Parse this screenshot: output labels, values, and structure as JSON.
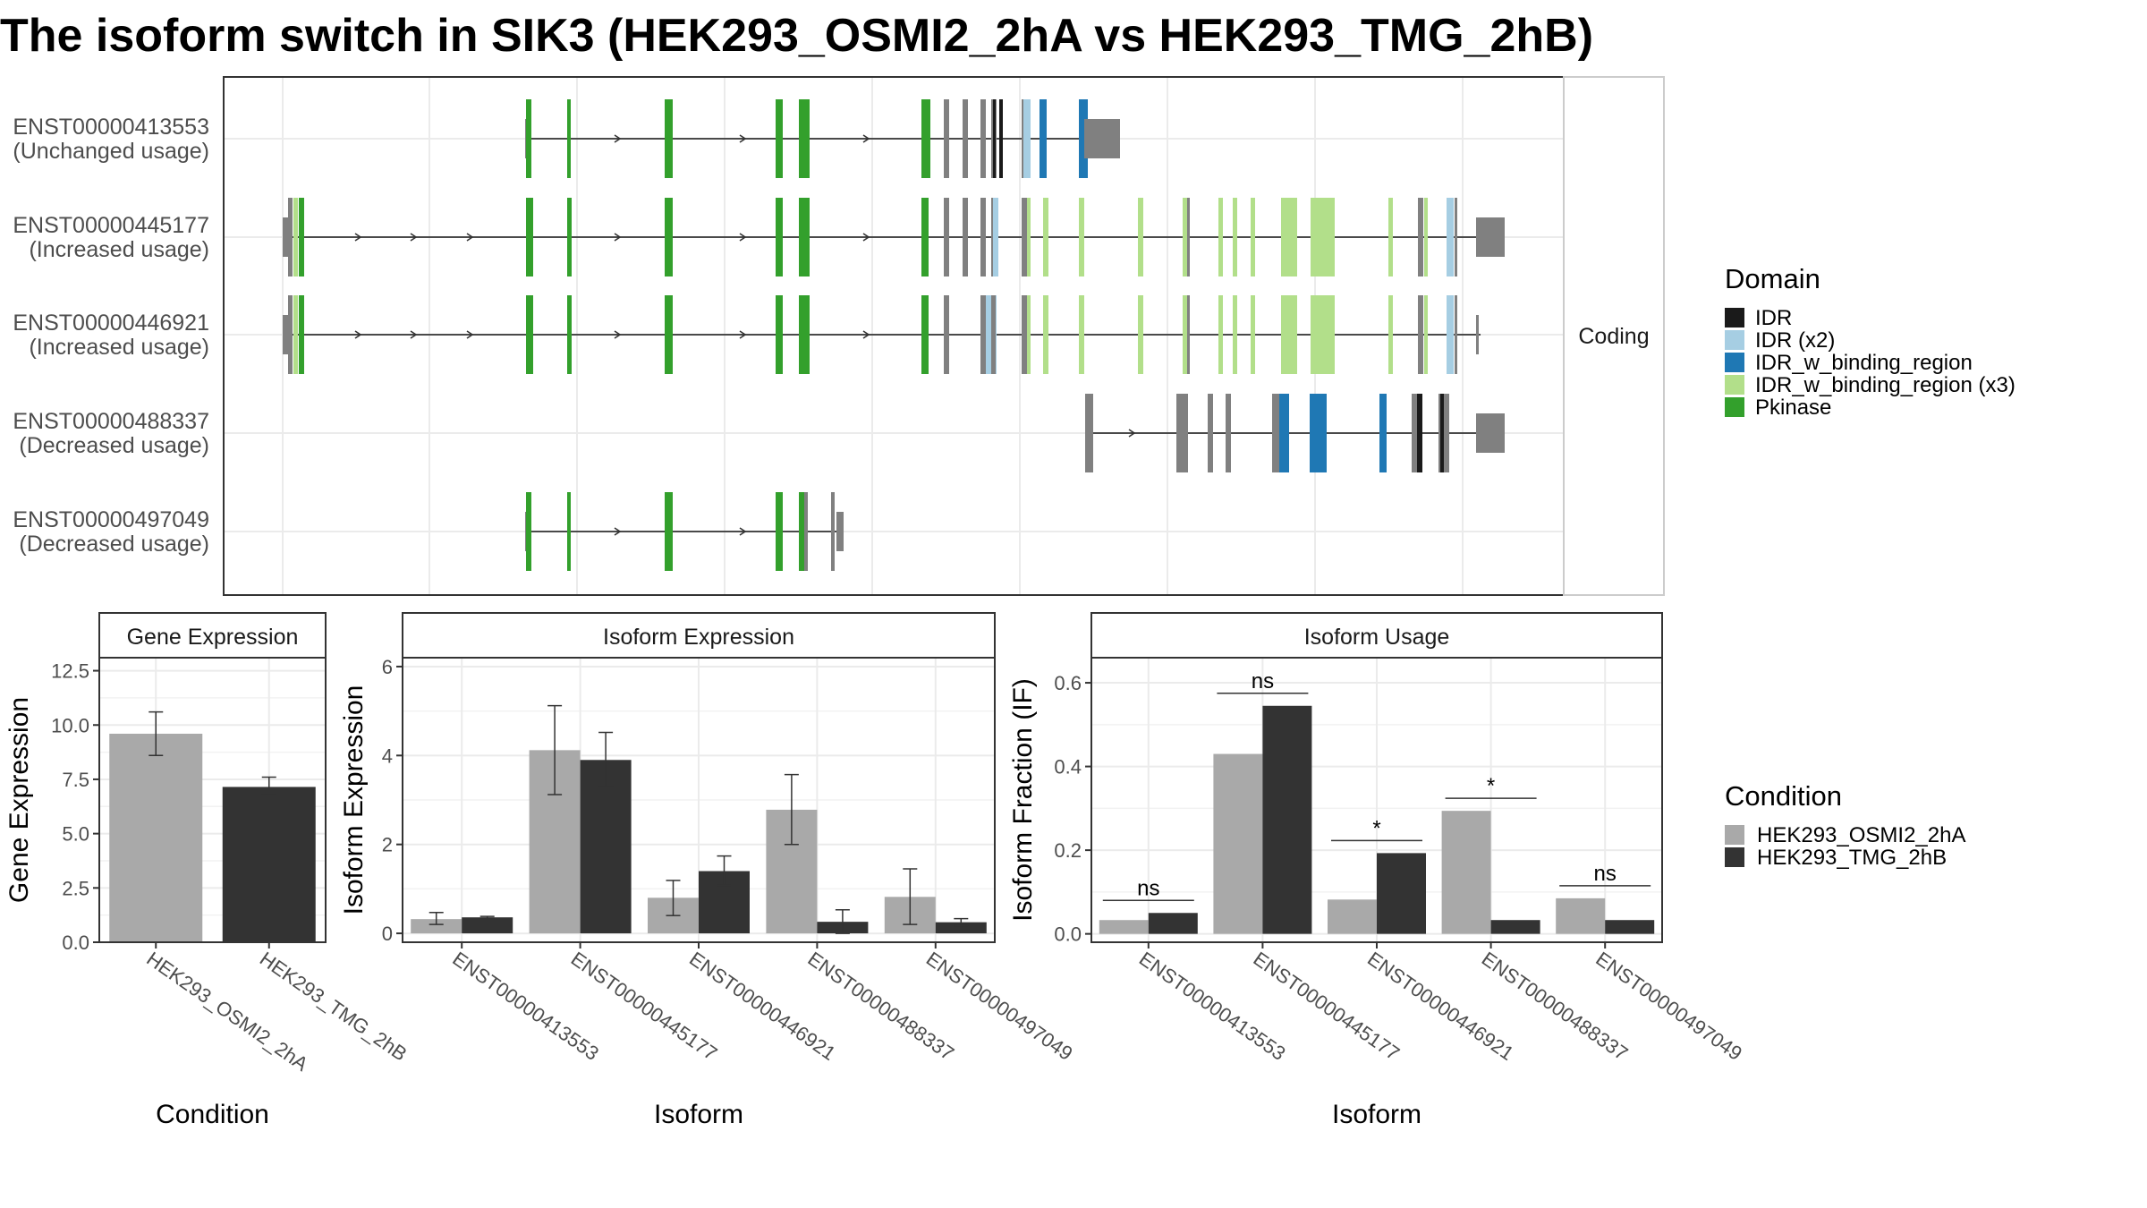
{
  "title": "The isoform switch in SIK3 (HEK293_OSMI2_2hA vs HEK293_TMG_2hB)",
  "colors": {
    "IDR": "#1a1a1a",
    "IDR (x2)": "#a6cee3",
    "IDR_w_binding_region": "#1f78b4",
    "IDR_w_binding_region (x3)": "#b2df8a",
    "Pkinase": "#33a02c",
    "none": "#808080",
    "cond1": "#a9a9a9",
    "cond2": "#333333"
  },
  "isoforms_panel": {
    "facet_label": "Coding",
    "transcripts": [
      {
        "id": "ENST00000413553",
        "usage": "(Unchanged usage)"
      },
      {
        "id": "ENST00000445177",
        "usage": "(Increased usage)"
      },
      {
        "id": "ENST00000446921",
        "usage": "(Increased usage)"
      },
      {
        "id": "ENST00000488337",
        "usage": "(Decreased usage)"
      },
      {
        "id": "ENST00000497049",
        "usage": "(Decreased usage)"
      }
    ]
  },
  "domain_legend": {
    "title": "Domain",
    "items": [
      "IDR",
      "IDR (x2)",
      "IDR_w_binding_region",
      "IDR_w_binding_region (x3)",
      "Pkinase"
    ]
  },
  "condition_legend": {
    "title": "Condition",
    "items": [
      "HEK293_OSMI2_2hA",
      "HEK293_TMG_2hB"
    ]
  },
  "chart_data": [
    {
      "type": "bar",
      "title": "Gene Expression",
      "xlabel": "Condition",
      "ylabel": "Gene Expression",
      "categories": [
        "HEK293_OSMI2_2hA",
        "HEK293_TMG_2hB"
      ],
      "values": [
        9.6,
        7.15
      ],
      "error_low": [
        8.6,
        6.8
      ],
      "error_high": [
        10.6,
        7.6
      ],
      "ylim": [
        0,
        13.1
      ],
      "yticks": [
        "0.0",
        "2.5",
        "5.0",
        "7.5",
        "10.0",
        "12.5"
      ]
    },
    {
      "type": "bar",
      "title": "Isoform Expression",
      "xlabel": "Isoform",
      "ylabel": "Isoform Expression",
      "categories": [
        "ENST00000413553",
        "ENST00000445177",
        "ENST00000446921",
        "ENST00000488337",
        "ENST00000497049"
      ],
      "series": [
        {
          "name": "HEK293_OSMI2_2hA",
          "values": [
            0.32,
            4.12,
            0.8,
            2.78,
            0.82
          ],
          "error_low": [
            0.2,
            3.12,
            0.4,
            2.0,
            0.2
          ],
          "error_high": [
            0.47,
            5.12,
            1.19,
            3.57,
            1.45
          ]
        },
        {
          "name": "HEK293_TMG_2hB",
          "values": [
            0.36,
            3.9,
            1.4,
            0.26,
            0.25
          ],
          "error_low": [
            0.34,
            3.3,
            1.08,
            0.0,
            0.17
          ],
          "error_high": [
            0.38,
            4.52,
            1.74,
            0.53,
            0.33
          ]
        }
      ],
      "ylim": [
        -0.2,
        6.2
      ],
      "yticks": [
        "0",
        "2",
        "4",
        "6"
      ]
    },
    {
      "type": "bar",
      "title": "Isoform Usage",
      "xlabel": "Isoform",
      "ylabel": "Isoform Fraction (IF)",
      "categories": [
        "ENST00000413553",
        "ENST00000445177",
        "ENST00000446921",
        "ENST00000488337",
        "ENST00000497049"
      ],
      "series": [
        {
          "name": "HEK293_OSMI2_2hA",
          "values": [
            0.033,
            0.43,
            0.082,
            0.294,
            0.085
          ]
        },
        {
          "name": "HEK293_TMG_2hB",
          "values": [
            0.05,
            0.545,
            0.193,
            0.033,
            0.033
          ]
        }
      ],
      "significance": [
        "ns",
        "ns",
        "*",
        "*",
        "ns"
      ],
      "ylim": [
        -0.02,
        0.66
      ],
      "yticks": [
        "0.0",
        "0.2",
        "0.4",
        "0.6"
      ]
    }
  ]
}
